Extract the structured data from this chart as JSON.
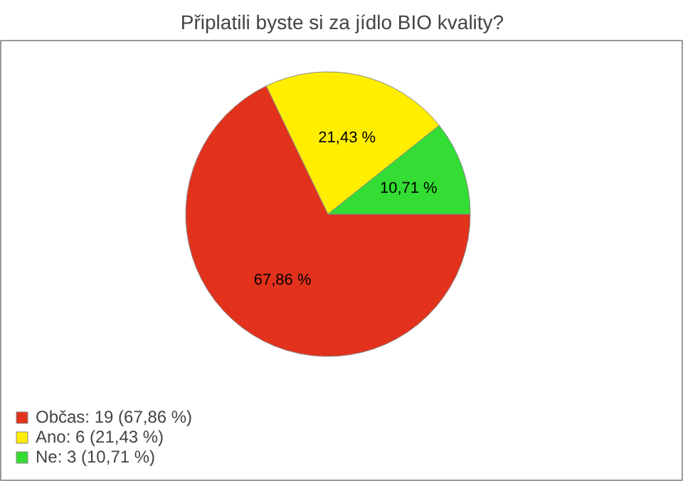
{
  "chart_data": {
    "type": "pie",
    "title": "Připlatili byste si za jídlo BIO kvality?",
    "categories": [
      "Občas: 19 (67,86 %)",
      "Ano: 6 (21,43 %)",
      "Ne: 3 (10,71 %)"
    ],
    "values": [
      67.86,
      21.43,
      10.71
    ],
    "colors": [
      "#e2321c",
      "#ffee00",
      "#33dd33"
    ],
    "value_labels": [
      "67,86 %",
      "21,43 %",
      "10,71 %"
    ],
    "legend": "bottom left"
  }
}
